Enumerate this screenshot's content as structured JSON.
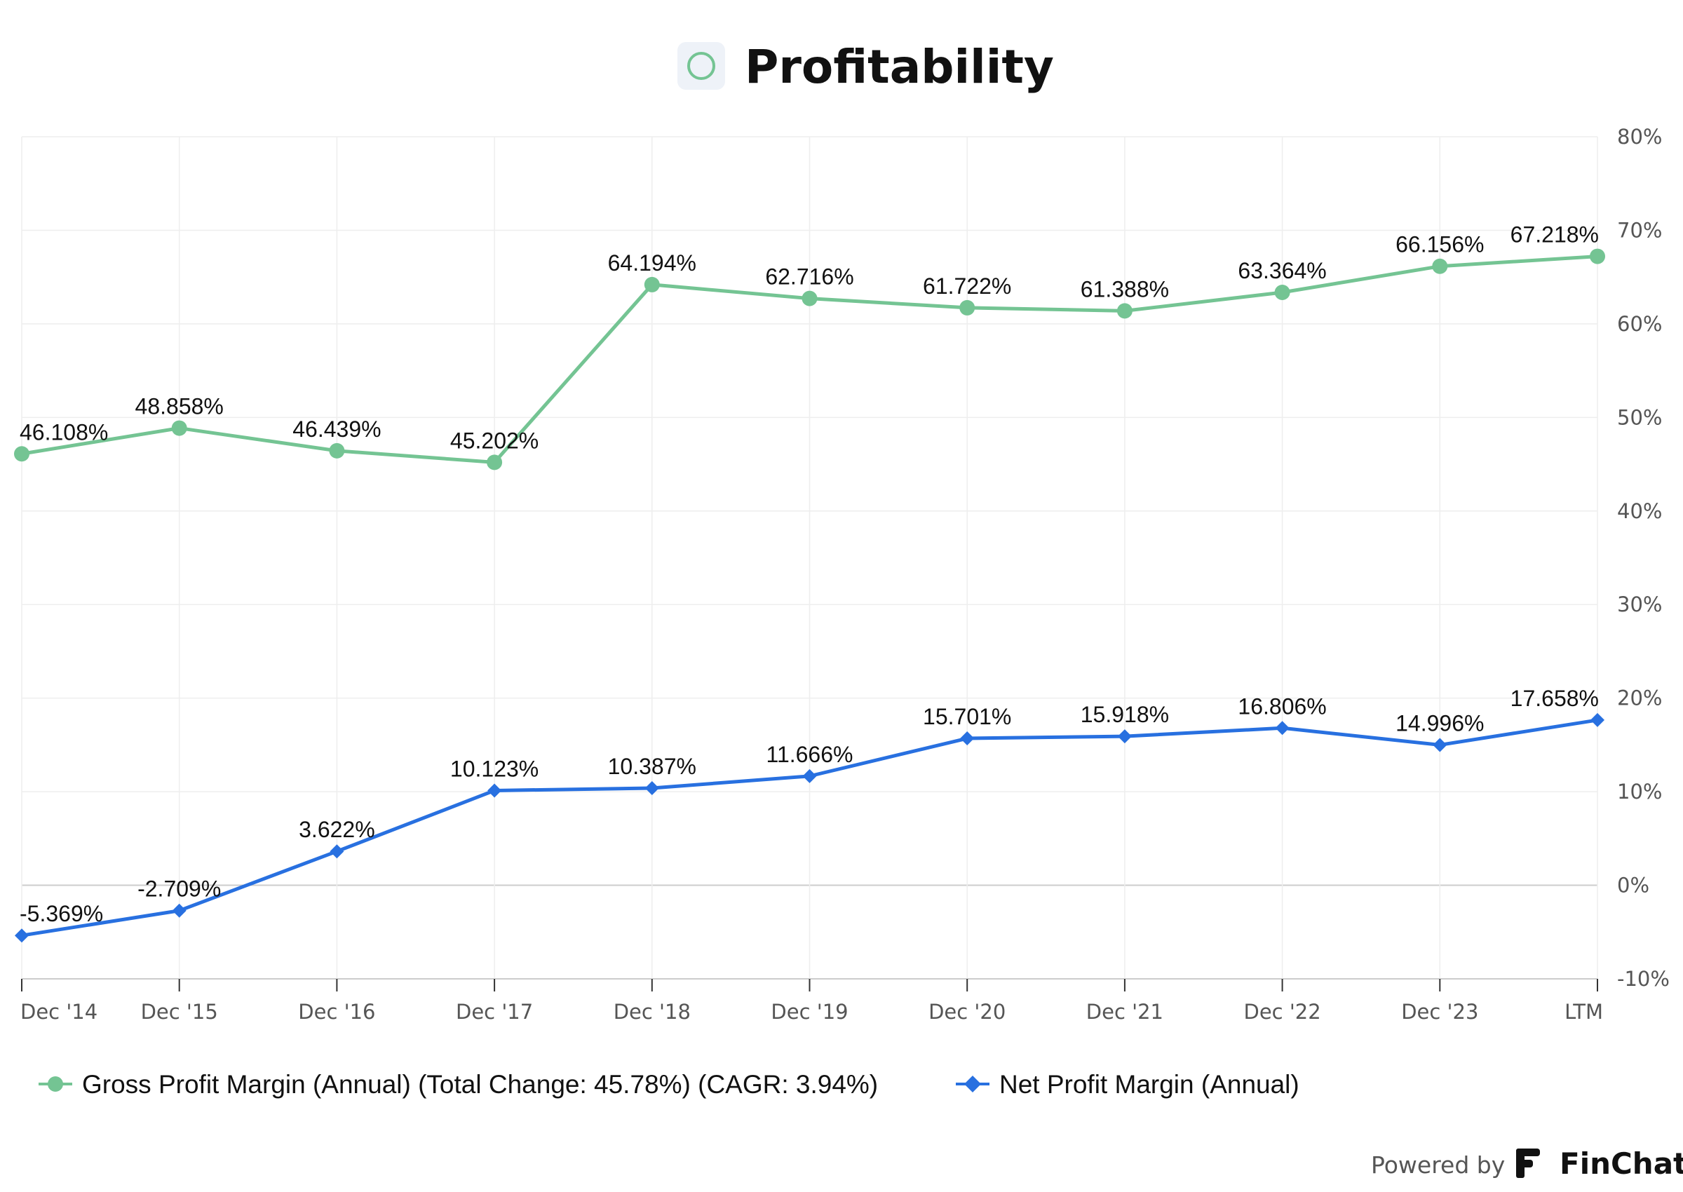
{
  "header": {
    "title": "Profitability",
    "icon": "circle-outline-icon"
  },
  "colors": {
    "gross": "#74c493",
    "net": "#2870e0",
    "grid": "#eeeeee",
    "zero_line": "#cccccc",
    "axis": "#cccccc",
    "title_badge_bg": "#eef2f8"
  },
  "chart_data": {
    "type": "line",
    "categories": [
      "Dec '14",
      "Dec '15",
      "Dec '16",
      "Dec '17",
      "Dec '18",
      "Dec '19",
      "Dec '20",
      "Dec '21",
      "Dec '22",
      "Dec '23",
      "LTM"
    ],
    "y_axis": {
      "position": "right",
      "min": -10,
      "max": 80,
      "step": 10,
      "tick_labels": [
        "80%",
        "70%",
        "60%",
        "50%",
        "40%",
        "30%",
        "20%",
        "10%",
        "0%",
        "-10%"
      ]
    },
    "grid": true,
    "legend_position": "bottom-left",
    "series": [
      {
        "name": "Gross Profit Margin (Annual) (Total Change: 45.78%) (CAGR: 3.94%)",
        "marker": "circle",
        "values": [
          46.108,
          48.858,
          46.439,
          45.202,
          64.194,
          62.716,
          61.722,
          61.388,
          63.364,
          66.156,
          67.218
        ],
        "labels": [
          "46.108%",
          "48.858%",
          "46.439%",
          "45.202%",
          "64.194%",
          "62.716%",
          "61.722%",
          "61.388%",
          "63.364%",
          "66.156%",
          "67.218%"
        ]
      },
      {
        "name": "Net Profit Margin (Annual)",
        "marker": "diamond",
        "values": [
          -5.369,
          -2.709,
          3.622,
          10.123,
          10.387,
          11.666,
          15.701,
          15.918,
          16.806,
          14.996,
          17.658
        ],
        "labels": [
          "-5.369%",
          "-2.709%",
          "3.622%",
          "10.123%",
          "10.387%",
          "11.666%",
          "15.701%",
          "15.918%",
          "16.806%",
          "14.996%",
          "17.658%"
        ]
      }
    ]
  },
  "footer": {
    "powered_by": "Powered by",
    "brand": "FinChat",
    "brand_icon": "finchat-logo-icon"
  }
}
